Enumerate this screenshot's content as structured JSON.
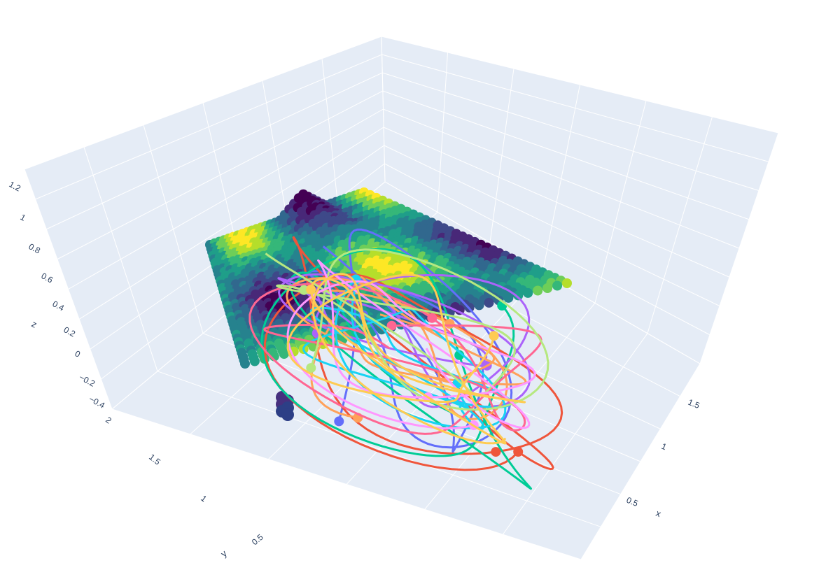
{
  "chart_data": {
    "type": "scatter",
    "dimension": "3d",
    "grid": true,
    "background_color": "#e5ecf6",
    "grid_color": "#ffffff",
    "colorscale": "viridis",
    "axes": {
      "x": {
        "title": "x",
        "ticks": [
          "0.5",
          "1",
          "1.5"
        ]
      },
      "y": {
        "title": "y",
        "ticks": [
          "0.5",
          "1",
          "1.5",
          "2"
        ]
      },
      "z": {
        "title": "z",
        "ticks": [
          "−0.4",
          "−0.2",
          "0",
          "0.2",
          "0.4",
          "0.6",
          "0.8",
          "1",
          "1.2"
        ]
      }
    },
    "surface_markers": {
      "shape": "bumpy plateau of spheres colored by height",
      "x_range": [
        0,
        2
      ],
      "y_range": [
        0,
        2
      ],
      "z_range": [
        0.0,
        0.2
      ]
    },
    "pillar_marker": {
      "x": 2.0,
      "y": 0.9,
      "z_range": [
        -0.45,
        -0.3
      ]
    },
    "trajectory_colors": [
      "#636efa",
      "#ef553b",
      "#00cc96",
      "#ab63fa",
      "#ffa15a",
      "#19d3f3",
      "#ff6692",
      "#b6e880",
      "#ff97ff",
      "#fecb52"
    ],
    "trajectory_count": 10,
    "trajectory_z_range": [
      -0.4,
      0.1
    ]
  }
}
